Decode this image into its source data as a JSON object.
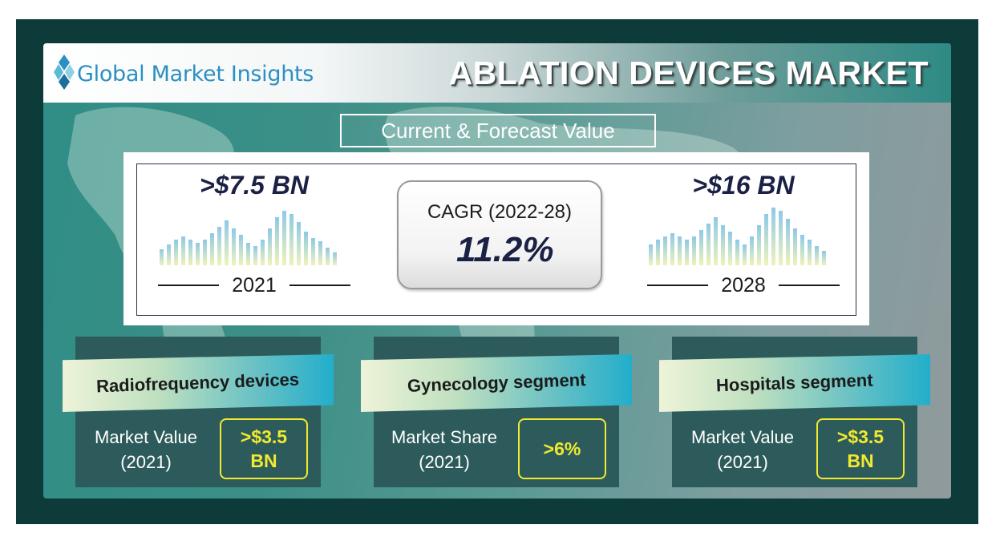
{
  "brand": {
    "logo_text": "Global Market Insights"
  },
  "title": "ABLATION DEVICES MARKET",
  "subtitle": "Current & Forecast Value",
  "forecast": {
    "current": {
      "amount": ">$7.5 BN",
      "year": "2021"
    },
    "future": {
      "amount": ">$16 BN",
      "year": "2028"
    },
    "cagr": {
      "label": "CAGR (2022-28)",
      "value": "11.2%"
    }
  },
  "segments": [
    {
      "title": "Radiofrequency devices",
      "metric_line1": "Market Value",
      "metric_line2": "(2021)",
      "value_line1": ">$3.5",
      "value_line2": "BN"
    },
    {
      "title": "Gynecology segment",
      "metric_line1": "Market Share",
      "metric_line2": "(2021)",
      "value_line1": ">6%",
      "value_line2": ""
    },
    {
      "title": "Hospitals segment",
      "metric_line1": "Market Value",
      "metric_line2": "(2021)",
      "value_line1": ">$3.5",
      "value_line2": "BN"
    }
  ],
  "colors": {
    "background_frame": "#0d3b3a",
    "accent_teal": "#2f8e86",
    "value_yellow": "#f1ea2e",
    "navy_text": "#1b2144",
    "logo_blue": "#2c8fc1"
  },
  "icons": {
    "logo": "diamond-cluster-icon",
    "decorative": "world-map-icon"
  }
}
